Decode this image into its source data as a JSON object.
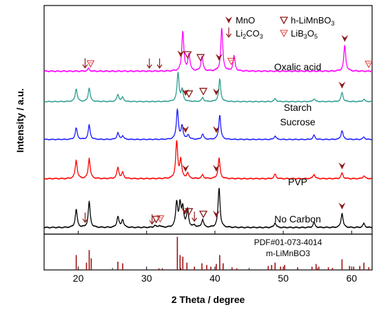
{
  "chart_data": {
    "type": "line",
    "xlabel": "2 Theta / degree",
    "ylabel": "Intensity / a.u.",
    "xlim": [
      15,
      63
    ],
    "xticks": [
      20,
      30,
      40,
      50,
      60
    ],
    "y_ticks_shown": false,
    "legend": {
      "placement": "top-right",
      "entries": [
        {
          "marker": "MnO-icon",
          "label": "MnO"
        },
        {
          "marker": "h-LiMnBO3-icon",
          "label": "h-LiMnBO3"
        },
        {
          "marker": "Li2CO3-icon",
          "label": "Li2CO3"
        },
        {
          "marker": "LiB3O5-icon",
          "label": "LiB3O5"
        }
      ]
    },
    "series": [
      {
        "name": "Oxalic acid",
        "color": "#ff00ff",
        "peaks": [
          [
            21.5,
            0.06
          ],
          [
            35.3,
            0.95
          ],
          [
            36.2,
            0.4
          ],
          [
            38.1,
            0.35
          ],
          [
            41.0,
            1.0
          ],
          [
            42.8,
            0.35
          ],
          [
            59.0,
            0.6
          ]
        ],
        "annotations": [
          {
            "x": 21.0,
            "marker": "Li2CO3-icon"
          },
          {
            "x": 21.8,
            "marker": "LiB3O5-icon"
          },
          {
            "x": 30.4,
            "marker": "Li2CO3-icon"
          },
          {
            "x": 31.9,
            "marker": "Li2CO3-icon"
          },
          {
            "x": 35.0,
            "marker": "MnO-icon"
          },
          {
            "x": 36.0,
            "marker": "h-LiMnBO3-icon"
          },
          {
            "x": 37.9,
            "marker": "h-LiMnBO3-icon"
          },
          {
            "x": 40.6,
            "marker": "MnO-icon"
          },
          {
            "x": 42.4,
            "marker": "LiB3O5-icon"
          },
          {
            "x": 59.0,
            "marker": "MnO-icon"
          },
          {
            "x": 62.5,
            "marker": "LiB3O5-icon"
          }
        ]
      },
      {
        "name": "Starch",
        "color": "#2a9d8f",
        "peaks": [
          [
            19.7,
            0.45
          ],
          [
            21.6,
            0.48
          ],
          [
            25.8,
            0.25
          ],
          [
            26.5,
            0.15
          ],
          [
            34.6,
            1.0
          ],
          [
            35.2,
            0.4
          ],
          [
            38.2,
            0.14
          ],
          [
            40.7,
            0.78
          ],
          [
            48.8,
            0.1
          ],
          [
            54.5,
            0.1
          ],
          [
            58.6,
            0.32
          ],
          [
            61.8,
            0.08
          ]
        ],
        "annotations": [
          {
            "x": 35.7,
            "marker": "MnO-icon"
          },
          {
            "x": 36.2,
            "marker": "h-LiMnBO3-icon"
          },
          {
            "x": 38.3,
            "marker": "h-LiMnBO3-icon"
          },
          {
            "x": 40.2,
            "marker": "MnO-icon"
          },
          {
            "x": 58.6,
            "marker": "MnO-icon"
          }
        ]
      },
      {
        "name": "Sucrose",
        "color": "#1a1aff",
        "peaks": [
          [
            19.7,
            0.38
          ],
          [
            21.6,
            0.48
          ],
          [
            25.8,
            0.22
          ],
          [
            26.5,
            0.12
          ],
          [
            34.5,
            1.0
          ],
          [
            35.2,
            0.45
          ],
          [
            36.1,
            0.15
          ],
          [
            38.2,
            0.18
          ],
          [
            40.7,
            0.82
          ],
          [
            48.8,
            0.12
          ],
          [
            54.5,
            0.14
          ],
          [
            58.6,
            0.3
          ],
          [
            61.8,
            0.08
          ]
        ],
        "annotations": [
          {
            "x": 35.7,
            "marker": "MnO-icon"
          },
          {
            "x": 40.2,
            "marker": "MnO-icon"
          }
        ]
      },
      {
        "name": "PVP",
        "color": "#ff0000",
        "peaks": [
          [
            19.7,
            0.5
          ],
          [
            21.6,
            0.55
          ],
          [
            25.8,
            0.3
          ],
          [
            26.5,
            0.16
          ],
          [
            34.4,
            1.0
          ],
          [
            35.0,
            0.5
          ],
          [
            36.0,
            0.15
          ],
          [
            38.2,
            0.1
          ],
          [
            40.6,
            0.55
          ],
          [
            48.8,
            0.12
          ],
          [
            54.5,
            0.12
          ],
          [
            58.6,
            0.15
          ],
          [
            61.8,
            0.08
          ]
        ],
        "annotations": [
          {
            "x": 35.7,
            "marker": "MnO-icon"
          },
          {
            "x": 40.2,
            "marker": "MnO-icon"
          },
          {
            "x": 58.6,
            "marker": "MnO-icon"
          }
        ]
      },
      {
        "name": "No Carbon",
        "color": "#000000",
        "peaks": [
          [
            19.7,
            0.45
          ],
          [
            21.6,
            0.65
          ],
          [
            25.8,
            0.28
          ],
          [
            26.5,
            0.2
          ],
          [
            31.2,
            0.05
          ],
          [
            31.9,
            0.05
          ],
          [
            34.4,
            0.62
          ],
          [
            34.9,
            0.55
          ],
          [
            35.3,
            0.48
          ],
          [
            36.0,
            0.45
          ],
          [
            37.0,
            0.05
          ],
          [
            38.2,
            0.2
          ],
          [
            40.6,
            1.0
          ],
          [
            48.8,
            0.12
          ],
          [
            54.5,
            0.12
          ],
          [
            58.6,
            0.36
          ],
          [
            61.8,
            0.1
          ]
        ],
        "annotations": [
          {
            "x": 21.0,
            "marker": "Li2CO3-icon"
          },
          {
            "x": 30.8,
            "marker": "Li2CO3-icon"
          },
          {
            "x": 31.4,
            "marker": "h-LiMnBO3-icon"
          },
          {
            "x": 32.0,
            "marker": "LiB3O5-icon"
          },
          {
            "x": 35.6,
            "marker": "MnO-icon"
          },
          {
            "x": 36.2,
            "marker": "h-LiMnBO3-icon"
          },
          {
            "x": 37.0,
            "marker": "Li2CO3-icon"
          },
          {
            "x": 38.3,
            "marker": "h-LiMnBO3-icon"
          },
          {
            "x": 40.2,
            "marker": "MnO-icon"
          },
          {
            "x": 58.6,
            "marker": "MnO-icon"
          }
        ]
      }
    ],
    "reference": {
      "label": "PDF#01-073-4014",
      "sublabel": "m-LiMnBO3",
      "color": "#a01010",
      "lines": [
        [
          19.7,
          0.45
        ],
        [
          21.2,
          0.22
        ],
        [
          21.6,
          0.6
        ],
        [
          21.9,
          0.35
        ],
        [
          25.8,
          0.25
        ],
        [
          26.5,
          0.2
        ],
        [
          31.8,
          0.05
        ],
        [
          32.3,
          0.05
        ],
        [
          34.5,
          1.0
        ],
        [
          34.9,
          0.45
        ],
        [
          35.3,
          0.4
        ],
        [
          35.9,
          0.22
        ],
        [
          37.0,
          0.1
        ],
        [
          38.1,
          0.2
        ],
        [
          38.8,
          0.15
        ],
        [
          39.4,
          0.1
        ],
        [
          40.2,
          0.18
        ],
        [
          40.7,
          0.45
        ],
        [
          41.2,
          0.2
        ],
        [
          42.5,
          0.08
        ],
        [
          43.2,
          0.05
        ],
        [
          47.8,
          0.12
        ],
        [
          48.3,
          0.15
        ],
        [
          48.8,
          0.22
        ],
        [
          49.6,
          0.1
        ],
        [
          50.2,
          0.15
        ],
        [
          52.1,
          0.08
        ],
        [
          54.2,
          0.1
        ],
        [
          54.8,
          0.18
        ],
        [
          55.2,
          0.1
        ],
        [
          56.6,
          0.08
        ],
        [
          57.2,
          0.06
        ],
        [
          58.6,
          0.32
        ],
        [
          59.7,
          0.12
        ],
        [
          60.3,
          0.1
        ],
        [
          61.2,
          0.12
        ],
        [
          61.8,
          0.22
        ],
        [
          62.5,
          0.08
        ]
      ]
    }
  }
}
